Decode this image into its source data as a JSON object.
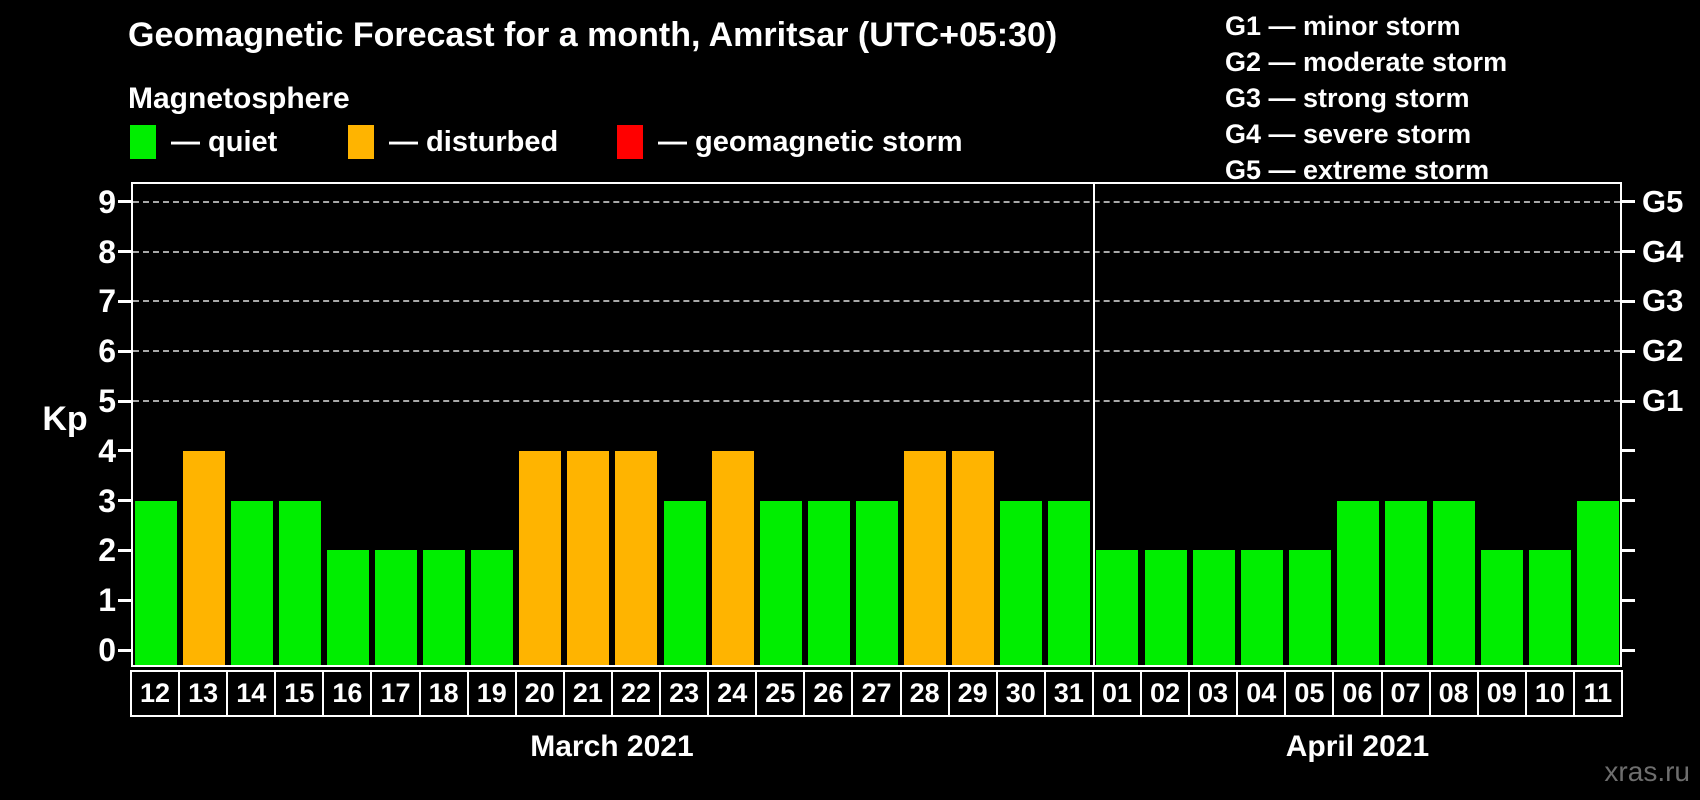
{
  "header": {
    "title": "Geomagnetic Forecast for a month, Amritsar (UTC+05:30)",
    "subtitle": "Magnetosphere"
  },
  "legend": {
    "items": [
      {
        "name": "quiet",
        "label": "— quiet",
        "color": "#00ee00"
      },
      {
        "name": "disturbed",
        "label": "— disturbed",
        "color": "#ffb400"
      },
      {
        "name": "geomagnetic-storm",
        "label": "— geomagnetic storm",
        "color": "#ff0000"
      }
    ]
  },
  "g_scale": {
    "lines": [
      "G1 — minor storm",
      "G2 — moderate storm",
      "G3 — strong storm",
      "G4 — severe storm",
      "G5 — extreme storm"
    ],
    "axis_labels": [
      {
        "kp": 5,
        "label": "G1"
      },
      {
        "kp": 6,
        "label": "G2"
      },
      {
        "kp": 7,
        "label": "G3"
      },
      {
        "kp": 8,
        "label": "G4"
      },
      {
        "kp": 9,
        "label": "G5"
      }
    ]
  },
  "axis": {
    "ylabel": "Kp",
    "yticks": [
      0,
      1,
      2,
      3,
      4,
      5,
      6,
      7,
      8,
      9
    ]
  },
  "watermark": "xras.ru",
  "chart_data": {
    "type": "bar",
    "title": "Geomagnetic Forecast for a month, Amritsar (UTC+05:30)",
    "ylabel": "Kp",
    "ylim": [
      0,
      9
    ],
    "grid": "dashed horizontal",
    "gridlines_at": [
      5,
      6,
      7,
      8,
      9
    ],
    "legend_position": "top",
    "months": [
      {
        "label": "March 2021",
        "days": [
          {
            "day": "12",
            "kp": 3,
            "status": "quiet"
          },
          {
            "day": "13",
            "kp": 4,
            "status": "disturbed"
          },
          {
            "day": "14",
            "kp": 3,
            "status": "quiet"
          },
          {
            "day": "15",
            "kp": 3,
            "status": "quiet"
          },
          {
            "day": "16",
            "kp": 2,
            "status": "quiet"
          },
          {
            "day": "17",
            "kp": 2,
            "status": "quiet"
          },
          {
            "day": "18",
            "kp": 2,
            "status": "quiet"
          },
          {
            "day": "19",
            "kp": 2,
            "status": "quiet"
          },
          {
            "day": "20",
            "kp": 4,
            "status": "disturbed"
          },
          {
            "day": "21",
            "kp": 4,
            "status": "disturbed"
          },
          {
            "day": "22",
            "kp": 4,
            "status": "disturbed"
          },
          {
            "day": "23",
            "kp": 3,
            "status": "quiet"
          },
          {
            "day": "24",
            "kp": 4,
            "status": "disturbed"
          },
          {
            "day": "25",
            "kp": 3,
            "status": "quiet"
          },
          {
            "day": "26",
            "kp": 3,
            "status": "quiet"
          },
          {
            "day": "27",
            "kp": 3,
            "status": "quiet"
          },
          {
            "day": "28",
            "kp": 4,
            "status": "disturbed"
          },
          {
            "day": "29",
            "kp": 4,
            "status": "disturbed"
          },
          {
            "day": "30",
            "kp": 3,
            "status": "quiet"
          },
          {
            "day": "31",
            "kp": 3,
            "status": "quiet"
          }
        ]
      },
      {
        "label": "April 2021",
        "days": [
          {
            "day": "01",
            "kp": 2,
            "status": "quiet"
          },
          {
            "day": "02",
            "kp": 2,
            "status": "quiet"
          },
          {
            "day": "03",
            "kp": 2,
            "status": "quiet"
          },
          {
            "day": "04",
            "kp": 2,
            "status": "quiet"
          },
          {
            "day": "05",
            "kp": 2,
            "status": "quiet"
          },
          {
            "day": "06",
            "kp": 3,
            "status": "quiet"
          },
          {
            "day": "07",
            "kp": 3,
            "status": "quiet"
          },
          {
            "day": "08",
            "kp": 3,
            "status": "quiet"
          },
          {
            "day": "09",
            "kp": 2,
            "status": "quiet"
          },
          {
            "day": "10",
            "kp": 2,
            "status": "quiet"
          },
          {
            "day": "11",
            "kp": 3,
            "status": "quiet"
          }
        ]
      }
    ]
  }
}
